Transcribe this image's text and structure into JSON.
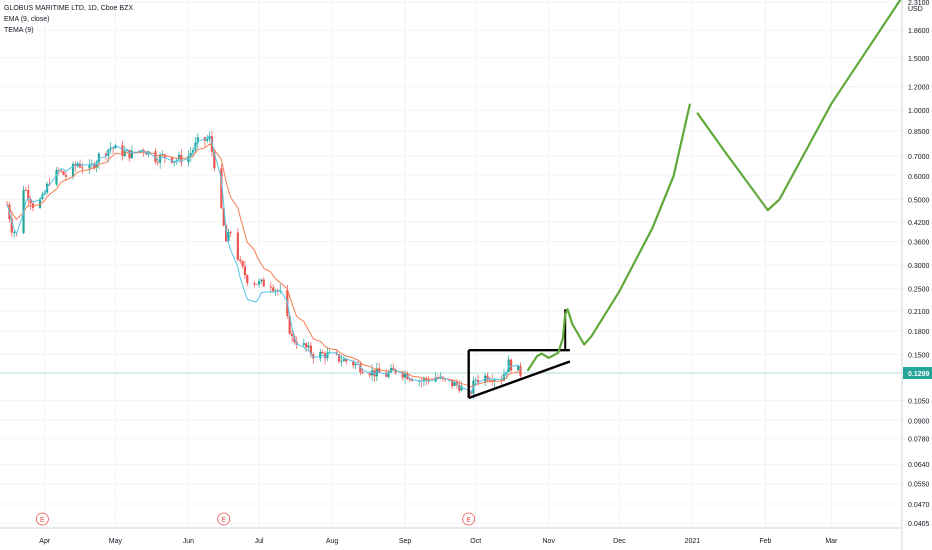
{
  "header": {
    "title": "GLOBUS MARITIME LTD, 1D, Cboe BZX",
    "indicators": [
      "EMA (9, close)",
      "TEMA (9)"
    ]
  },
  "colors": {
    "up": "#26a69a",
    "down": "#ef5350",
    "ema": "#f57c4f",
    "tema": "#53c7e8",
    "drawing": "#5fa83a",
    "trendline": "#000000",
    "price_line": "#26a69a",
    "earnings": "#ef5350"
  },
  "axis": {
    "currency": "USD",
    "y_ticks": [
      "2.3100",
      "1.8600",
      "1.5000",
      "1.2000",
      "1.0000",
      "0.8500",
      "0.7000",
      "0.6000",
      "0.5000",
      "0.4200",
      "0.3600",
      "0.3000",
      "0.2500",
      "0.2100",
      "0.1800",
      "0.1500",
      "0.1050",
      "0.0900",
      "0.0780",
      "0.0640",
      "0.0550",
      "0.0470",
      "0.0405"
    ],
    "x_ticks": [
      "Apr",
      "May",
      "Jun",
      "Jul",
      "Aug",
      "Sep",
      "Oct",
      "Nov",
      "Dec",
      "2021",
      "Feb",
      "Mar"
    ],
    "current_price": "0.1299",
    "earnings_marker": "E"
  },
  "chart_data": {
    "type": "candlestick",
    "title": "GLOBUS MARITIME LTD, 1D, Cboe BZX",
    "y_scale": "log",
    "y_range": [
      0.039,
      2.35
    ],
    "x_range": [
      "2020-03-13",
      "2021-03-31"
    ],
    "close_series": [
      {
        "date": "2020-03-16",
        "close": 0.48
      },
      {
        "date": "2020-03-18",
        "close": 0.4
      },
      {
        "date": "2020-03-20",
        "close": 0.38
      },
      {
        "date": "2020-03-23",
        "close": 0.55
      },
      {
        "date": "2020-03-25",
        "close": 0.52
      },
      {
        "date": "2020-03-27",
        "close": 0.48
      },
      {
        "date": "2020-03-31",
        "close": 0.5
      },
      {
        "date": "2020-04-03",
        "close": 0.58
      },
      {
        "date": "2020-04-07",
        "close": 0.62
      },
      {
        "date": "2020-04-10",
        "close": 0.6
      },
      {
        "date": "2020-04-15",
        "close": 0.66
      },
      {
        "date": "2020-04-20",
        "close": 0.63
      },
      {
        "date": "2020-04-24",
        "close": 0.7
      },
      {
        "date": "2020-04-29",
        "close": 0.75
      },
      {
        "date": "2020-05-04",
        "close": 0.72
      },
      {
        "date": "2020-05-08",
        "close": 0.71
      },
      {
        "date": "2020-05-13",
        "close": 0.74
      },
      {
        "date": "2020-05-18",
        "close": 0.69
      },
      {
        "date": "2020-05-22",
        "close": 0.7
      },
      {
        "date": "2020-05-27",
        "close": 0.68
      },
      {
        "date": "2020-06-01",
        "close": 0.7
      },
      {
        "date": "2020-06-05",
        "close": 0.78
      },
      {
        "date": "2020-06-10",
        "close": 0.8
      },
      {
        "date": "2020-06-12",
        "close": 0.66
      },
      {
        "date": "2020-06-15",
        "close": 0.45
      },
      {
        "date": "2020-06-17",
        "close": 0.36
      },
      {
        "date": "2020-06-19",
        "close": 0.39
      },
      {
        "date": "2020-06-23",
        "close": 0.3
      },
      {
        "date": "2020-06-26",
        "close": 0.27
      },
      {
        "date": "2020-07-01",
        "close": 0.26
      },
      {
        "date": "2020-07-06",
        "close": 0.26
      },
      {
        "date": "2020-07-10",
        "close": 0.24
      },
      {
        "date": "2020-07-15",
        "close": 0.17
      },
      {
        "date": "2020-07-20",
        "close": 0.16
      },
      {
        "date": "2020-07-24",
        "close": 0.15
      },
      {
        "date": "2020-07-29",
        "close": 0.15
      },
      {
        "date": "2020-08-04",
        "close": 0.145
      },
      {
        "date": "2020-08-10",
        "close": 0.14
      },
      {
        "date": "2020-08-14",
        "close": 0.135
      },
      {
        "date": "2020-08-19",
        "close": 0.13
      },
      {
        "date": "2020-08-24",
        "close": 0.128
      },
      {
        "date": "2020-08-28",
        "close": 0.133
      },
      {
        "date": "2020-09-02",
        "close": 0.128
      },
      {
        "date": "2020-09-08",
        "close": 0.122
      },
      {
        "date": "2020-09-14",
        "close": 0.126
      },
      {
        "date": "2020-09-18",
        "close": 0.121
      },
      {
        "date": "2020-09-24",
        "close": 0.118
      },
      {
        "date": "2020-09-28",
        "close": 0.108
      },
      {
        "date": "2020-10-01",
        "close": 0.124
      },
      {
        "date": "2020-10-06",
        "close": 0.127
      },
      {
        "date": "2020-10-12",
        "close": 0.125
      },
      {
        "date": "2020-10-15",
        "close": 0.14
      },
      {
        "date": "2020-10-20",
        "close": 0.13
      }
    ],
    "earnings_dates": [
      "2020-03-31",
      "2020-06-16",
      "2020-09-28"
    ]
  }
}
